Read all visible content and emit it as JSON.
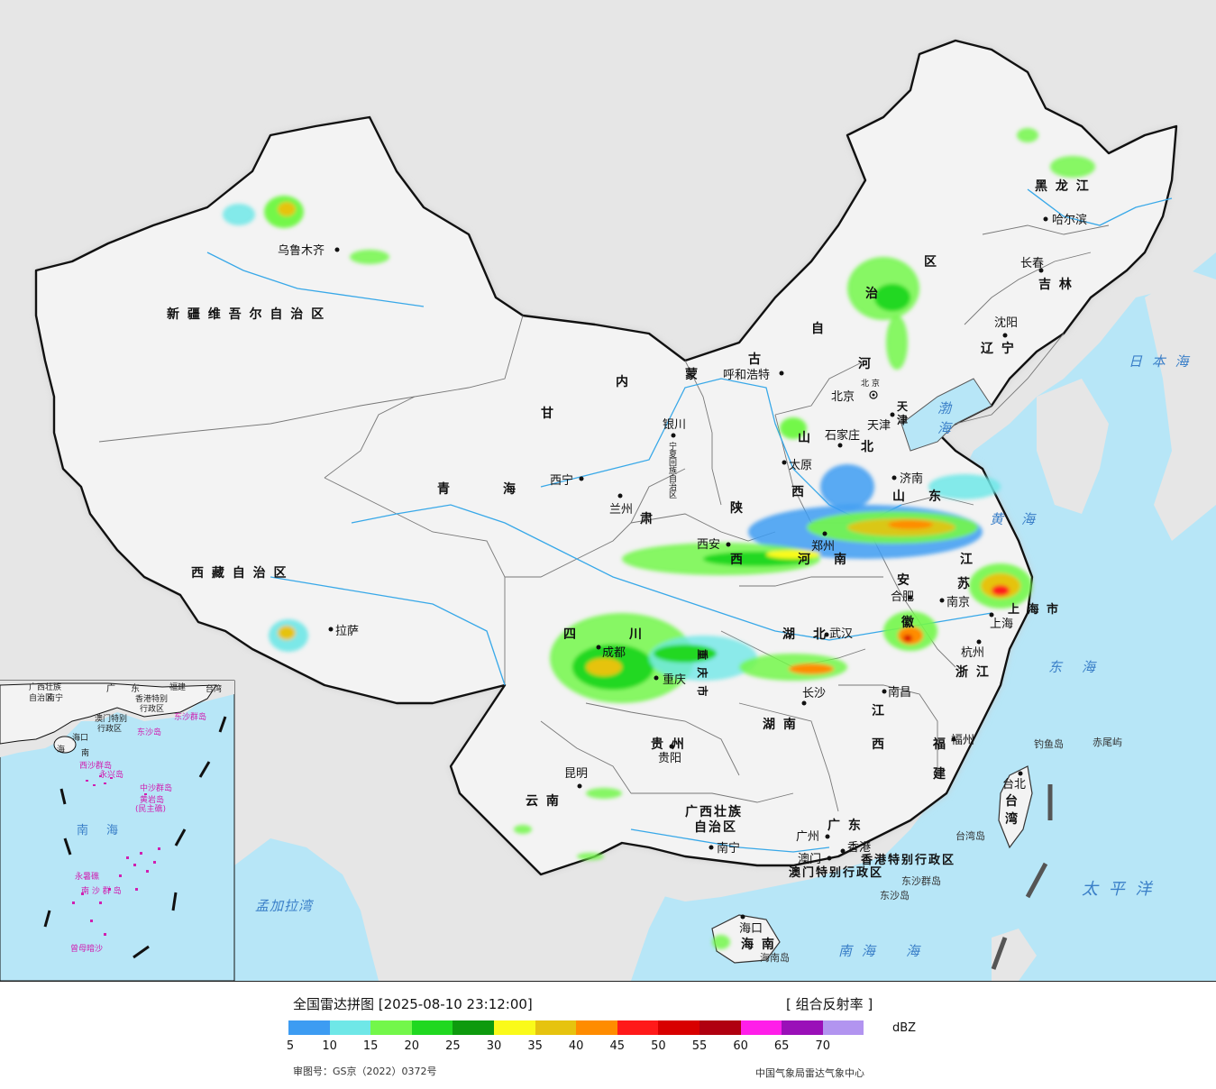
{
  "colors": {
    "ocean": "#b7e6f7",
    "neighbor_land": "#e6e6e6",
    "china_land": "#f3f3f3",
    "border": "#111111",
    "river": "#38a8e8"
  },
  "legend": {
    "title": "全国雷达拼图 [2025-08-10 23:12:00]",
    "product": "[ 组合反射率 ]",
    "unit": "dBZ",
    "ticks": [
      "5",
      "10",
      "15",
      "20",
      "25",
      "30",
      "35",
      "40",
      "45",
      "50",
      "55",
      "60",
      "65",
      "70"
    ],
    "swatches": [
      "#3d9cf2",
      "#6fe7e7",
      "#73f74a",
      "#20d820",
      "#0e9a0e",
      "#fafa1a",
      "#e6c30f",
      "#ff8c00",
      "#ff1a1a",
      "#d80000",
      "#b00010",
      "#ff1ee9",
      "#9a10b8",
      "#b294f0"
    ],
    "review_code": "审图号：GS京（2022）0372号",
    "organization": "中国气象局雷达气象中心"
  },
  "provinces": [
    {
      "text": "新 疆 维 吾 尔 自 治 区"
    },
    {
      "text": "西 藏 自 治 区"
    },
    {
      "text": "青"
    },
    {
      "text": "海"
    },
    {
      "text": "甘"
    },
    {
      "text": "肃"
    },
    {
      "text": "内"
    },
    {
      "text": "蒙"
    },
    {
      "text": "古"
    },
    {
      "text": "自"
    },
    {
      "text": "治"
    },
    {
      "text": "区"
    },
    {
      "text": "黑 龙 江"
    },
    {
      "text": "吉 林"
    },
    {
      "text": "辽 宁"
    },
    {
      "text": "河"
    },
    {
      "text": "北"
    },
    {
      "text": "山"
    },
    {
      "text": "西"
    },
    {
      "text": "陕"
    },
    {
      "text": "西"
    },
    {
      "text": "河"
    },
    {
      "text": "南"
    },
    {
      "text": "山"
    },
    {
      "text": "东"
    },
    {
      "text": "江"
    },
    {
      "text": "苏"
    },
    {
      "text": "安"
    },
    {
      "text": "徽"
    },
    {
      "text": "湖"
    },
    {
      "text": "北"
    },
    {
      "text": "四"
    },
    {
      "text": "川"
    },
    {
      "text": "重 庆 市"
    },
    {
      "text": "贵 州"
    },
    {
      "text": "湖 南"
    },
    {
      "text": "江"
    },
    {
      "text": "西"
    },
    {
      "text": "浙 江"
    },
    {
      "text": "福"
    },
    {
      "text": "建"
    },
    {
      "text": "云 南"
    },
    {
      "text": "广西壮族"
    },
    {
      "text": "自治区"
    },
    {
      "text": "广 东"
    },
    {
      "text": "海 南"
    },
    {
      "text": "台"
    },
    {
      "text": "湾"
    },
    {
      "text": "上 海 市"
    },
    {
      "text": "天"
    },
    {
      "text": "津"
    },
    {
      "text": "北 京"
    },
    {
      "text": "宁夏回族自治区"
    },
    {
      "text": "香港特别行政区"
    },
    {
      "text": "澳门特别行政区"
    }
  ],
  "cities": [
    {
      "name": "乌鲁木齐"
    },
    {
      "name": "拉萨"
    },
    {
      "name": "西宁"
    },
    {
      "name": "兰州"
    },
    {
      "name": "银川"
    },
    {
      "name": "呼和浩特"
    },
    {
      "name": "北京"
    },
    {
      "name": "天津"
    },
    {
      "name": "石家庄"
    },
    {
      "name": "太原"
    },
    {
      "name": "西安"
    },
    {
      "name": "郑州"
    },
    {
      "name": "济南"
    },
    {
      "name": "南京"
    },
    {
      "name": "合肥"
    },
    {
      "name": "上海"
    },
    {
      "name": "杭州"
    },
    {
      "name": "武汉"
    },
    {
      "name": "成都"
    },
    {
      "name": "重庆"
    },
    {
      "name": "长沙"
    },
    {
      "name": "南昌"
    },
    {
      "name": "福州"
    },
    {
      "name": "台北"
    },
    {
      "name": "贵阳"
    },
    {
      "name": "昆明"
    },
    {
      "name": "南宁"
    },
    {
      "name": "广州"
    },
    {
      "name": "香港"
    },
    {
      "name": "澳门"
    },
    {
      "name": "海口"
    },
    {
      "name": "哈尔滨"
    },
    {
      "name": "长春"
    },
    {
      "name": "沈阳"
    }
  ],
  "seas": [
    {
      "name": "日 本 海"
    },
    {
      "name": "渤"
    },
    {
      "name": "海"
    },
    {
      "name": "黄"
    },
    {
      "name": "海"
    },
    {
      "name": "东"
    },
    {
      "name": "海"
    },
    {
      "name": "太 平 洋"
    },
    {
      "name": "南 海"
    },
    {
      "name": "海"
    },
    {
      "name": "孟加拉湾"
    }
  ],
  "islands": [
    {
      "name": "钓鱼岛"
    },
    {
      "name": "赤尾屿"
    },
    {
      "name": "台湾岛"
    },
    {
      "name": "东沙群岛"
    },
    {
      "name": "东沙岛"
    },
    {
      "name": "海南岛"
    }
  ],
  "inset": {
    "labels": [
      {
        "text": "广西壮族"
      },
      {
        "text": "自治区"
      },
      {
        "text": "广"
      },
      {
        "text": "东"
      },
      {
        "text": "福建"
      },
      {
        "text": "台湾"
      },
      {
        "text": "南宁"
      },
      {
        "text": "香港特别"
      },
      {
        "text": "行政区"
      },
      {
        "text": "澳门特别"
      },
      {
        "text": "行政区"
      },
      {
        "text": "东沙群岛"
      },
      {
        "text": "东沙岛"
      },
      {
        "text": "海口"
      },
      {
        "text": "海"
      },
      {
        "text": "南"
      },
      {
        "text": "西沙群岛"
      },
      {
        "text": "永兴岛"
      },
      {
        "text": "中沙群岛"
      },
      {
        "text": "黄岩岛"
      },
      {
        "text": "(民主礁)"
      },
      {
        "text": "南"
      },
      {
        "text": "海"
      },
      {
        "text": "永暑礁"
      },
      {
        "text": "南 沙 群 岛"
      },
      {
        "text": "曾母暗沙"
      }
    ]
  }
}
